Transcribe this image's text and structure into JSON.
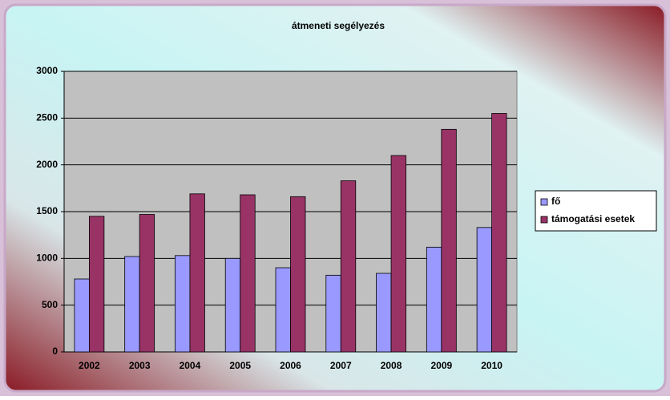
{
  "chart_data": {
    "type": "bar",
    "title": "átmeneti segélyezés",
    "categories": [
      "2002",
      "2003",
      "2004",
      "2005",
      "2006",
      "2007",
      "2008",
      "2009",
      "2010"
    ],
    "series": [
      {
        "name": "fő",
        "color": "#9999ff",
        "values": [
          780,
          1020,
          1030,
          1000,
          900,
          820,
          840,
          1120,
          1330
        ]
      },
      {
        "name": "támogatási esetek",
        "color": "#993366",
        "values": [
          1450,
          1470,
          1690,
          1680,
          1660,
          1830,
          2100,
          2380,
          2550
        ]
      }
    ],
    "ylim": [
      0,
      3000
    ],
    "yticks": [
      0,
      500,
      1000,
      1500,
      2000,
      2500,
      3000
    ],
    "grid": true,
    "legend": "right"
  }
}
